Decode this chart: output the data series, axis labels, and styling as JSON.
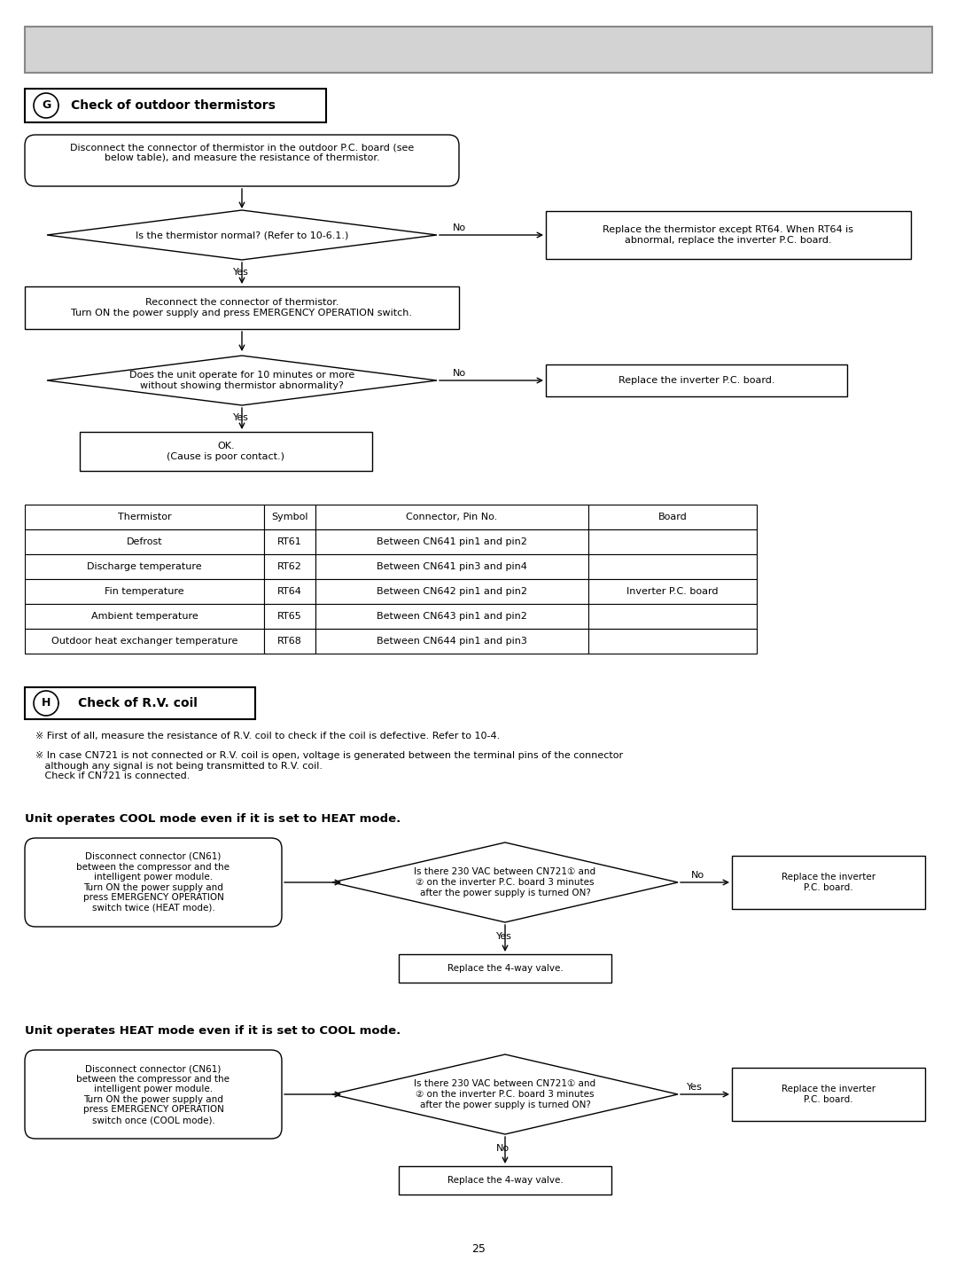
{
  "page_number": "25",
  "header_bg": "#d0d0d0",
  "flowchart_G": {
    "box1": "Disconnect the connector of thermistor in the outdoor P.C. board (see\nbelow table), and measure the resistance of thermistor.",
    "diamond1": "Is the thermistor normal? (Refer to 10-6.1.)",
    "box2_no": "Replace the thermistor except RT64. When RT64 is\nabnormal, replace the inverter P.C. board.",
    "box3": "Reconnect the connector of thermistor.\nTurn ON the power supply and press EMERGENCY OPERATION switch.",
    "diamond2": "Does the unit operate for 10 minutes or more\nwithout showing thermistor abnormality?",
    "box4_no": "Replace the inverter P.C. board.",
    "box5": "OK.\n(Cause is poor contact.)"
  },
  "table_headers": [
    "Thermistor",
    "Symbol",
    "Connector, Pin No.",
    "Board"
  ],
  "table_rows": [
    [
      "Defrost",
      "RT61",
      "Between CN641 pin1 and pin2",
      ""
    ],
    [
      "Discharge temperature",
      "RT62",
      "Between CN641 pin3 and pin4",
      ""
    ],
    [
      "Fin temperature",
      "RT64",
      "Between CN642 pin1 and pin2",
      "Inverter P.C. board"
    ],
    [
      "Ambient temperature",
      "RT65",
      "Between CN643 pin1 and pin2",
      ""
    ],
    [
      "Outdoor heat exchanger temperature",
      "RT68",
      "Between CN644 pin1 and pin3",
      ""
    ]
  ],
  "notes_H": [
    "※ First of all, measure the resistance of R.V. coil to check if the coil is defective. Refer to 10-4.",
    "※ In case CN721 is not connected or R.V. coil is open, voltage is generated between the terminal pins of the connector\n   although any signal is not being transmitted to R.V. coil.\n   Check if CN721 is connected."
  ],
  "cool_left_box": "Disconnect connector (CN61)\nbetween the compressor and the\nintelligent power module.\nTurn ON the power supply and\npress EMERGENCY OPERATION\nswitch twice (HEAT mode).",
  "cool_diamond": "Is there 230 VAC between CN721① and\n② on the inverter P.C. board 3 minutes\nafter the power supply is turned ON?",
  "cool_no_box": "Replace the inverter\nP.C. board.",
  "cool_yes_box": "Replace the 4-way valve.",
  "heat_left_box": "Disconnect connector (CN61)\nbetween the compressor and the\nintelligent power module.\nTurn ON the power supply and\npress EMERGENCY OPERATION\nswitch once (COOL mode).",
  "heat_diamond": "Is there 230 VAC between CN721① and\n② on the inverter P.C. board 3 minutes\nafter the power supply is turned ON?",
  "heat_yes_box": "Replace the inverter\nP.C. board.",
  "heat_no_box": "Replace the 4-way valve."
}
